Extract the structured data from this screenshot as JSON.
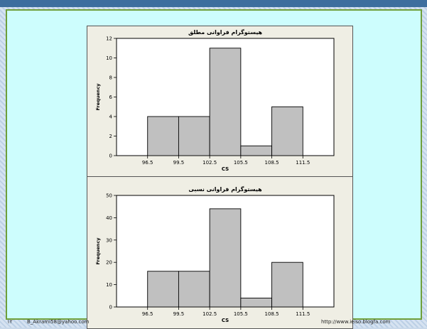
{
  "footer": {
    "page_number": "۱۲",
    "email": "B_Akrami58@yahoo.com",
    "url": "http://www.ieiso.blogfa.com"
  },
  "colors": {
    "bar_fill": "#c0c0c0",
    "panel_bg": "#efeee4",
    "slide_bg": "#cdfdfd"
  },
  "chart_data": [
    {
      "type": "bar",
      "title": "هیستوگرام فراوانی مطلق",
      "xlabel": "CS",
      "ylabel": "Frequency",
      "x_ticks": [
        "96.5",
        "99.5",
        "102.5",
        "105.5",
        "108.5",
        "111.5"
      ],
      "y_ticks": [
        0,
        2,
        4,
        6,
        8,
        10,
        12
      ],
      "ylim": [
        0,
        12
      ],
      "bins": [
        {
          "from": 96.5,
          "to": 99.5,
          "value": 4
        },
        {
          "from": 99.5,
          "to": 102.5,
          "value": 4
        },
        {
          "from": 102.5,
          "to": 105.5,
          "value": 11
        },
        {
          "from": 105.5,
          "to": 108.5,
          "value": 1
        },
        {
          "from": 108.5,
          "to": 111.5,
          "value": 5
        }
      ]
    },
    {
      "type": "bar",
      "title": "هیستوگرام فراوانی نسبی",
      "xlabel": "CS",
      "ylabel": "Frequency",
      "x_ticks": [
        "96.5",
        "99.5",
        "102.5",
        "105.5",
        "108.5",
        "111.5"
      ],
      "y_ticks": [
        0,
        10,
        20,
        30,
        40,
        50
      ],
      "ylim": [
        0,
        50
      ],
      "bins": [
        {
          "from": 96.5,
          "to": 99.5,
          "value": 16
        },
        {
          "from": 99.5,
          "to": 102.5,
          "value": 16
        },
        {
          "from": 102.5,
          "to": 105.5,
          "value": 44
        },
        {
          "from": 105.5,
          "to": 108.5,
          "value": 4
        },
        {
          "from": 108.5,
          "to": 111.5,
          "value": 20
        }
      ]
    }
  ]
}
